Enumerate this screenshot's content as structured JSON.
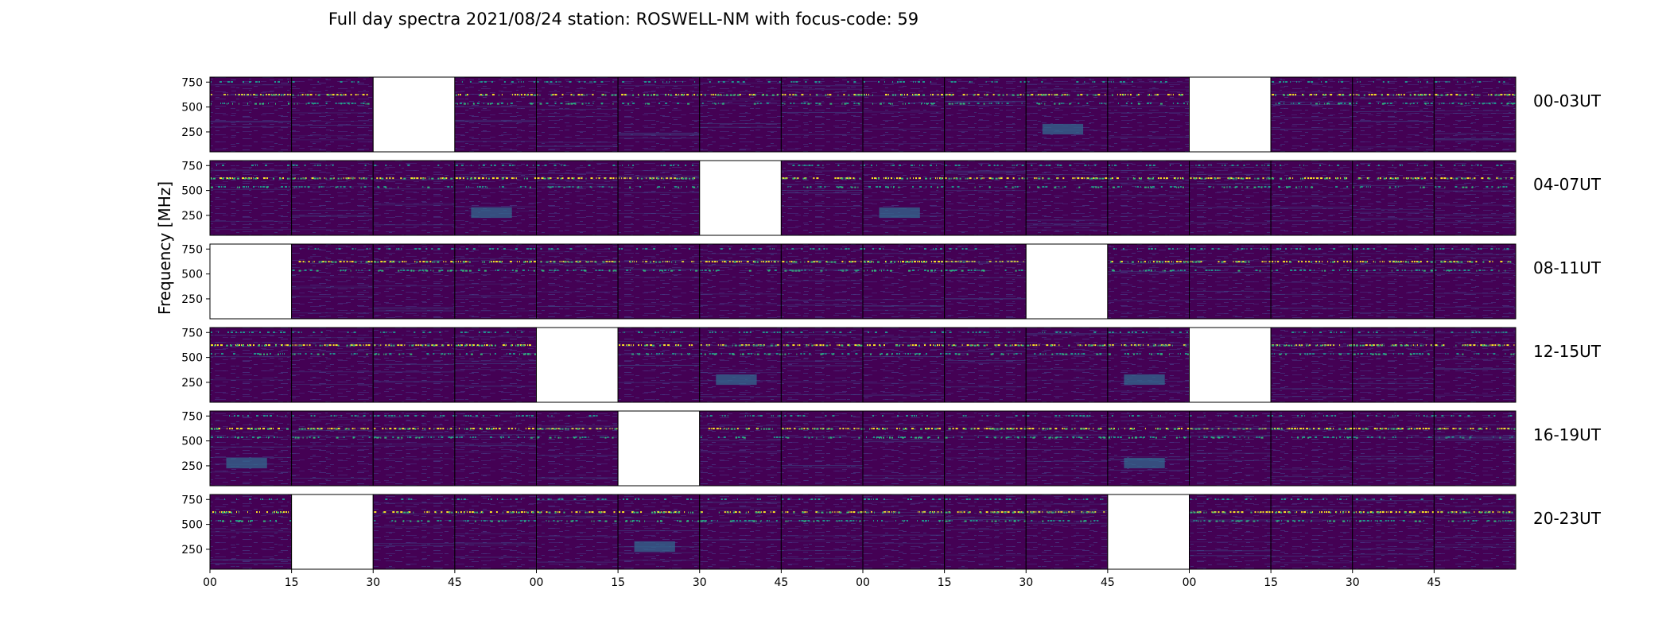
{
  "chart_data": {
    "type": "heatmap",
    "title": "Full day spectra 2021/08/24 station: ROSWELL-NM with focus-code: 59",
    "ylabel": "Frequency [MHz]",
    "xlabel": "",
    "y_ticks": [
      "250",
      "500",
      "750"
    ],
    "x_ticks": [
      "00",
      "15",
      "30",
      "45",
      "00",
      "15",
      "30",
      "45",
      "00",
      "15",
      "30",
      "45",
      "00",
      "15",
      "30",
      "45"
    ],
    "ylim": [
      50,
      800
    ],
    "colormap": "viridis",
    "rows": [
      {
        "label": "00-03UT",
        "missing_panels": [
          2,
          12
        ],
        "burst_panels": [
          10
        ]
      },
      {
        "label": "04-07UT",
        "missing_panels": [
          6
        ],
        "burst_panels": [
          3,
          8
        ]
      },
      {
        "label": "08-11UT",
        "missing_panels": [
          0,
          10
        ],
        "burst_panels": []
      },
      {
        "label": "12-15UT",
        "missing_panels": [
          4,
          12
        ],
        "burst_panels": [
          6,
          11
        ]
      },
      {
        "label": "16-19UT",
        "missing_panels": [
          5
        ],
        "burst_panels": [
          0,
          11
        ]
      },
      {
        "label": "20-23UT",
        "missing_panels": [
          1,
          11
        ],
        "burst_panels": [
          5
        ]
      }
    ],
    "panels_per_row": 16,
    "minutes_per_panel": 15
  },
  "colors": {
    "background": "#440154",
    "band_yellow": "#fde725",
    "band_teal": "#21918c",
    "band_cyan": "#35b779",
    "burst": "#31688e",
    "missing": "#ffffff"
  }
}
